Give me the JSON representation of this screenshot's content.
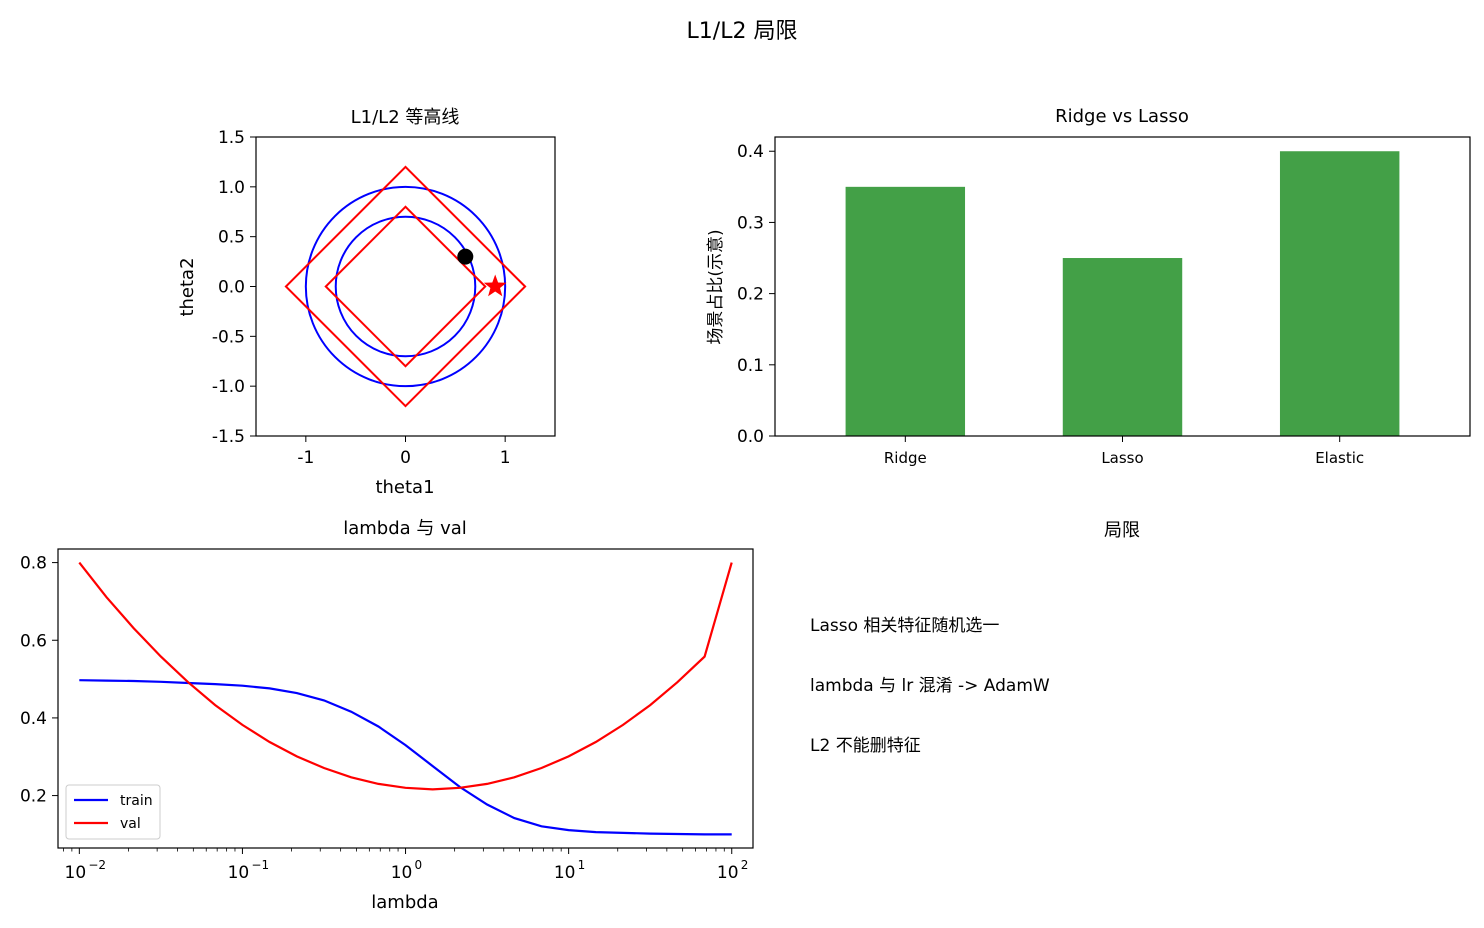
{
  "figure_title": "L1/L2 局限",
  "chart_data": [
    {
      "type": "line",
      "title": "L1/L2 等高线",
      "xlabel": "theta1",
      "ylabel": "theta2",
      "xlim": [
        -1.5,
        1.5
      ],
      "ylim": [
        -1.5,
        1.5
      ],
      "x_ticks": [
        -1,
        0,
        1
      ],
      "x_tick_labels": [
        "-1",
        "0",
        "1"
      ],
      "y_ticks": [
        -1.5,
        -1.0,
        -0.5,
        0.0,
        0.5,
        1.0,
        1.5
      ],
      "y_tick_labels": [
        "-1.5",
        "-1.0",
        "-0.5",
        "0.0",
        "0.5",
        "1.0",
        "1.5"
      ],
      "circles": [
        {
          "radius": 1.0,
          "color": "#0000ff"
        },
        {
          "radius": 0.7,
          "color": "#0000ff"
        }
      ],
      "diamonds": [
        {
          "radius": 1.2,
          "color": "#ff0000"
        },
        {
          "radius": 0.8,
          "color": "#ff0000"
        }
      ],
      "points": [
        {
          "x": 0.6,
          "y": 0.3,
          "marker": "circle",
          "color": "#000000"
        },
        {
          "x": 0.9,
          "y": 0.0,
          "marker": "star",
          "color": "#ff0000"
        }
      ],
      "grid": false
    },
    {
      "type": "bar",
      "title": "Ridge vs Lasso",
      "xlabel": "",
      "ylabel": "场景占比(示意)",
      "categories": [
        "Ridge",
        "Lasso",
        "Elastic"
      ],
      "values": [
        0.35,
        0.25,
        0.4
      ],
      "ylim": [
        0,
        0.42
      ],
      "y_ticks": [
        0.0,
        0.1,
        0.2,
        0.3,
        0.4
      ],
      "y_tick_labels": [
        "0.0",
        "0.1",
        "0.2",
        "0.3",
        "0.4"
      ],
      "color": "#43a047",
      "grid": false
    },
    {
      "type": "line",
      "title": "lambda 与 val",
      "xlabel": "lambda",
      "ylabel": "",
      "x_scale": "log",
      "xlim": [
        0.0074,
        135
      ],
      "ylim": [
        0.065,
        0.835
      ],
      "x_ticks": [
        0.01,
        0.1,
        1,
        10,
        100
      ],
      "x_tick_labels": [
        [
          "10",
          "−2"
        ],
        [
          "10",
          "−1"
        ],
        [
          "10",
          "0"
        ],
        [
          "10",
          "1"
        ],
        [
          "10",
          "2"
        ]
      ],
      "y_ticks": [
        0.2,
        0.4,
        0.6,
        0.8
      ],
      "y_tick_labels": [
        "0.2",
        "0.4",
        "0.6",
        "0.8"
      ],
      "x": [
        0.01,
        0.01468,
        0.02154,
        0.03162,
        0.04642,
        0.06813,
        0.1,
        0.1468,
        0.2154,
        0.3162,
        0.4642,
        0.6813,
        1.0,
        1.468,
        2.154,
        3.162,
        4.642,
        6.813,
        10.0,
        14.68,
        21.54,
        31.62,
        46.42,
        68.13,
        100.0
      ],
      "series": [
        {
          "name": "train",
          "color": "#0000ff",
          "values": [
            0.497,
            0.496,
            0.495,
            0.493,
            0.49,
            0.487,
            0.483,
            0.476,
            0.464,
            0.445,
            0.416,
            0.378,
            0.33,
            0.276,
            0.222,
            0.177,
            0.142,
            0.121,
            0.111,
            0.106,
            0.104,
            0.102,
            0.101,
            0.1,
            0.1
          ]
        },
        {
          "name": "val",
          "color": "#ff0000",
          "values": [
            0.8,
            0.711,
            0.631,
            0.558,
            0.492,
            0.433,
            0.382,
            0.338,
            0.301,
            0.271,
            0.247,
            0.23,
            0.22,
            0.216,
            0.22,
            0.23,
            0.247,
            0.271,
            0.301,
            0.338,
            0.382,
            0.433,
            0.492,
            0.558,
            0.8
          ]
        }
      ],
      "legend": "lower-left",
      "grid": false
    }
  ],
  "notes_panel": {
    "title": "局限",
    "lines": [
      "Lasso 相关特征随机选一",
      "lambda 与 lr 混淆 -> AdamW",
      "L2 不能删特征"
    ]
  }
}
